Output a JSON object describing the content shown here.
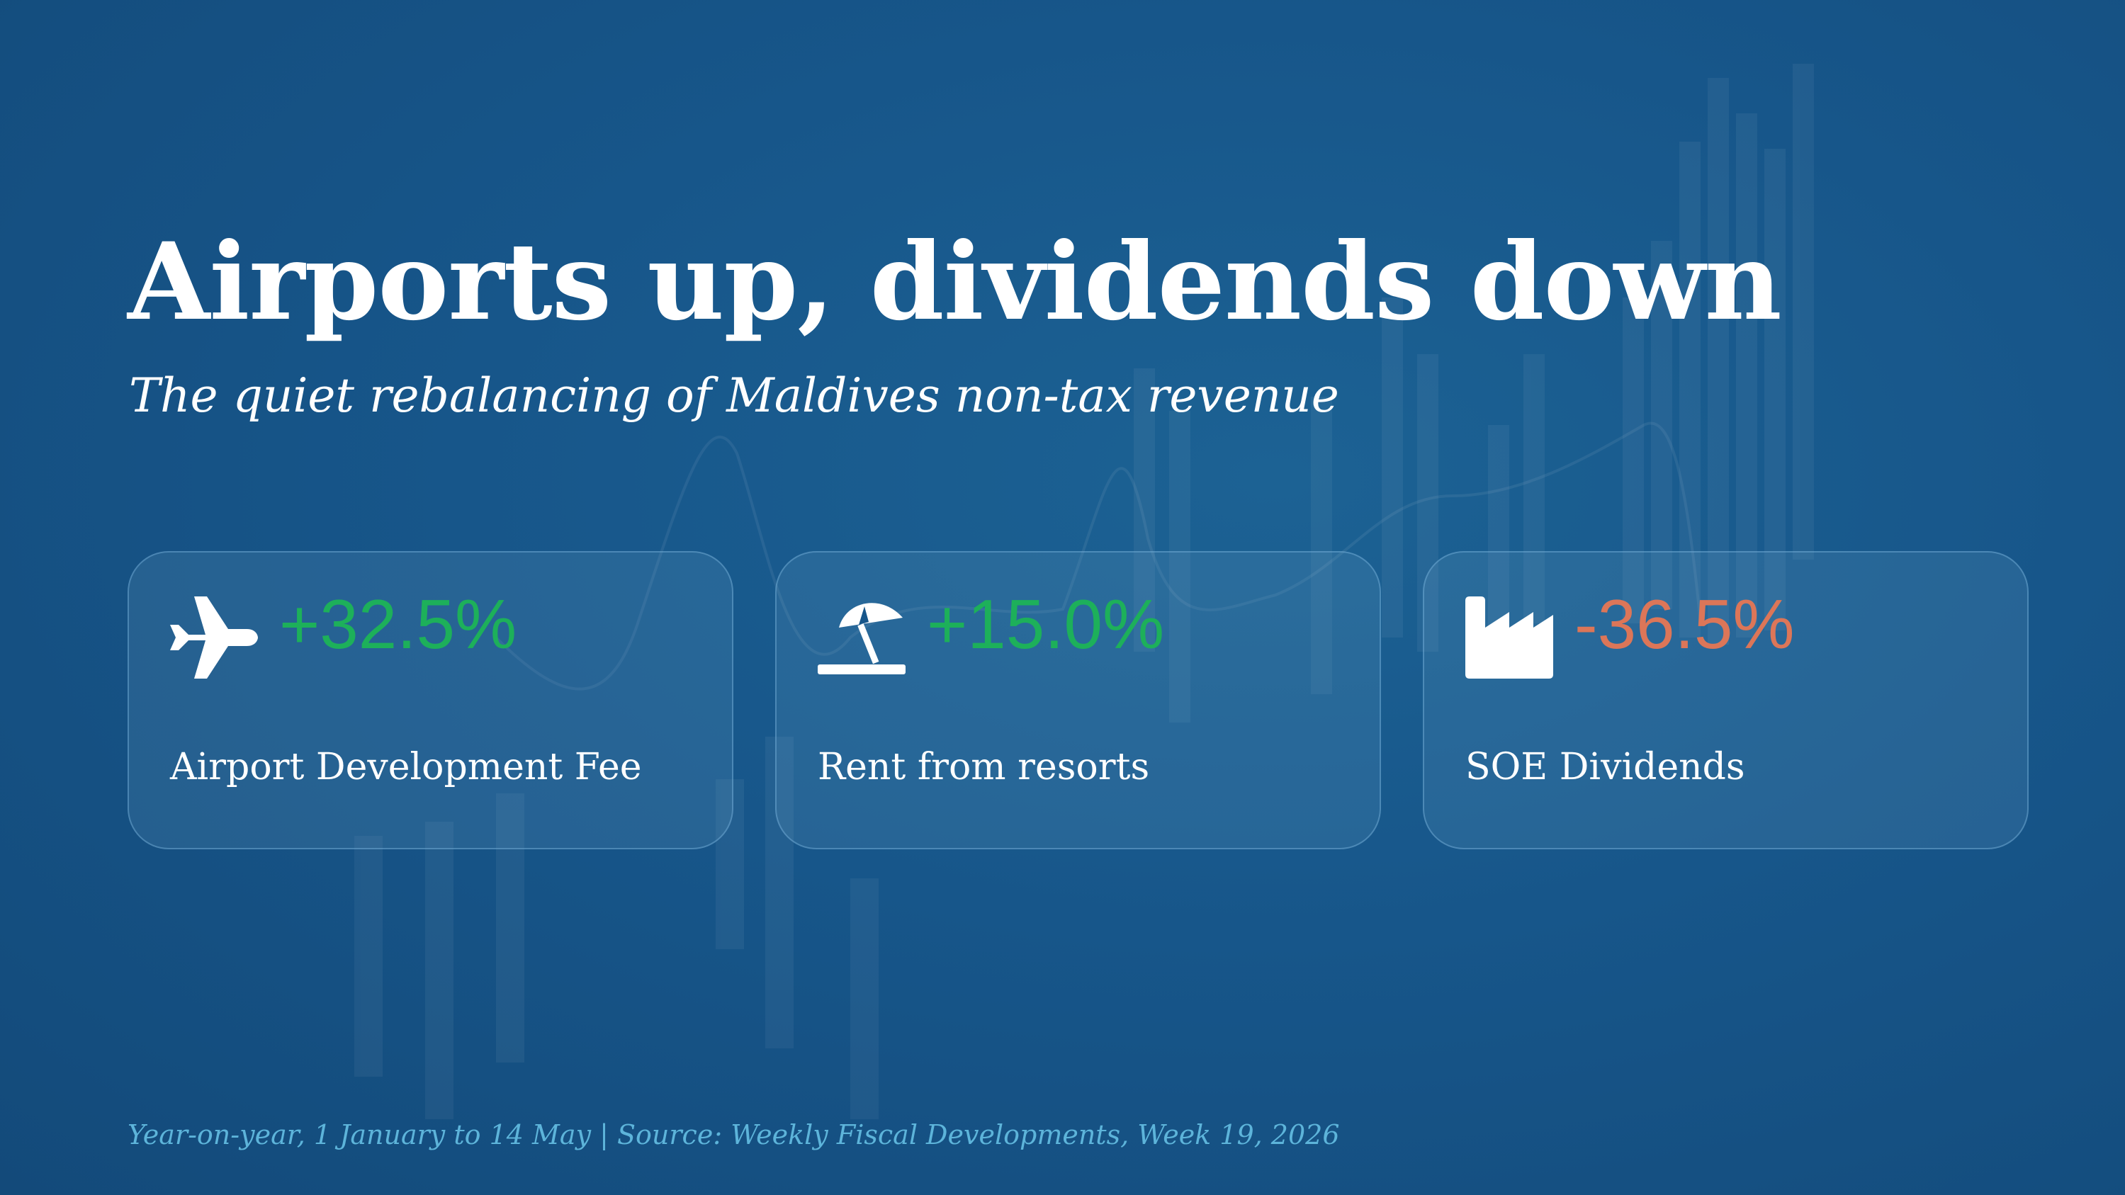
{
  "header": {
    "title": "Airports up, dividends down",
    "subtitle": "The quiet rebalancing of Maldives non-tax revenue"
  },
  "cards": [
    {
      "value": "+32.5%",
      "label": "Airport Development Fee"
    },
    {
      "value": "+15.0%",
      "label": "Rent from resorts"
    },
    {
      "value": "-36.5%",
      "label": "SOE Dividends"
    }
  ],
  "footer": "Year-on-year, 1 January to 14 May | Source: Weekly Fiscal Developments, Week 19, 2026"
}
